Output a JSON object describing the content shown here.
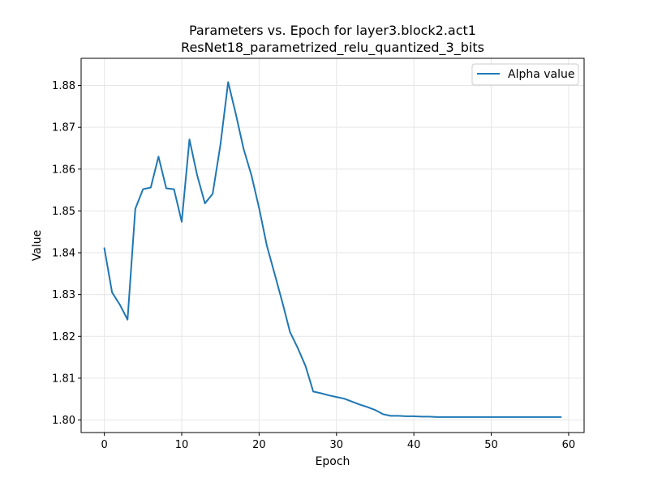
{
  "chart_data": {
    "type": "line",
    "title": "Parameters vs. Epoch for layer3.block2.act1",
    "subtitle": "ResNet18_parametrized_relu_quantized_3_bits",
    "xlabel": "Epoch",
    "ylabel": "Value",
    "xlim": [
      -3,
      62
    ],
    "ylim": [
      1.797,
      1.8865
    ],
    "x_ticks": [
      0,
      10,
      20,
      30,
      40,
      50,
      60
    ],
    "y_ticks": [
      1.8,
      1.81,
      1.82,
      1.83,
      1.84,
      1.85,
      1.86,
      1.87,
      1.88
    ],
    "grid": true,
    "legend_position": "top-right",
    "series": [
      {
        "name": "Alpha value",
        "color": "#1f77b4",
        "x": [
          0,
          1,
          2,
          3,
          4,
          5,
          6,
          7,
          8,
          9,
          10,
          11,
          12,
          13,
          14,
          15,
          16,
          17,
          18,
          19,
          20,
          21,
          22,
          23,
          24,
          25,
          26,
          27,
          28,
          29,
          30,
          31,
          32,
          33,
          34,
          35,
          36,
          37,
          38,
          39,
          40,
          41,
          42,
          43,
          44,
          45,
          46,
          47,
          48,
          49,
          50,
          51,
          52,
          53,
          54,
          55,
          56,
          57,
          58,
          59
        ],
        "y": [
          1.8411,
          1.8305,
          1.8276,
          1.824,
          1.8505,
          1.8552,
          1.8556,
          1.863,
          1.8554,
          1.8552,
          1.8474,
          1.8671,
          1.8585,
          1.8518,
          1.8541,
          1.8658,
          1.8808,
          1.8731,
          1.8648,
          1.8586,
          1.8507,
          1.8417,
          1.835,
          1.8282,
          1.821,
          1.8172,
          1.8129,
          1.8068,
          1.8064,
          1.8059,
          1.8055,
          1.8051,
          1.8044,
          1.8037,
          1.8031,
          1.8024,
          1.8014,
          1.801,
          1.801,
          1.8009,
          1.8009,
          1.8008,
          1.8008,
          1.8007,
          1.8007,
          1.8007,
          1.8007,
          1.8007,
          1.8007,
          1.8007,
          1.8007,
          1.8007,
          1.8007,
          1.8007,
          1.8007,
          1.8007,
          1.8007,
          1.8007,
          1.8007,
          1.8007
        ]
      }
    ]
  }
}
